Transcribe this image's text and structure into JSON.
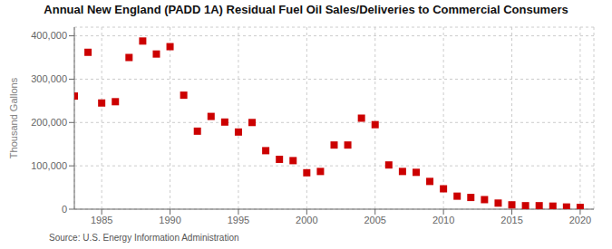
{
  "chart_data": {
    "type": "scatter",
    "title": "Annual New England (PADD 1A) Residual Fuel Oil Sales/Deliveries to Commercial Consumers",
    "ylabel": "Thousand Gallons",
    "annotations": [
      "Source: U.S. Energy Information Administration"
    ],
    "color": "#cc0000",
    "marker": "square",
    "grid": true,
    "x": [
      1983,
      1984,
      1985,
      1986,
      1987,
      1988,
      1989,
      1990,
      1991,
      1992,
      1993,
      1994,
      1995,
      1996,
      1997,
      1998,
      1999,
      2000,
      2001,
      2002,
      2003,
      2004,
      2005,
      2006,
      2007,
      2008,
      2009,
      2010,
      2011,
      2012,
      2013,
      2014,
      2015,
      2016,
      2017,
      2018,
      2019,
      2020
    ],
    "values": [
      261000,
      362000,
      245000,
      248000,
      350000,
      388000,
      358000,
      375000,
      263000,
      180000,
      214000,
      201000,
      178000,
      200000,
      135000,
      115000,
      112000,
      84000,
      87000,
      148000,
      148000,
      210000,
      195000,
      102000,
      87000,
      85000,
      64000,
      47000,
      30000,
      27000,
      22000,
      14000,
      10000,
      8000,
      8000,
      7000,
      5000,
      4000
    ],
    "xlim": [
      1983,
      2021
    ],
    "xticks": [
      1985,
      1990,
      1995,
      2000,
      2005,
      2010,
      2015,
      2020
    ],
    "ylim": [
      0,
      420000
    ],
    "yticks": [
      0,
      {
        "value": 100000,
        "label": "100,000"
      },
      {
        "value": 200000,
        "label": "200,000"
      },
      {
        "value": 300000,
        "label": "300,000"
      },
      {
        "value": 400000,
        "label": "400,000"
      }
    ]
  }
}
